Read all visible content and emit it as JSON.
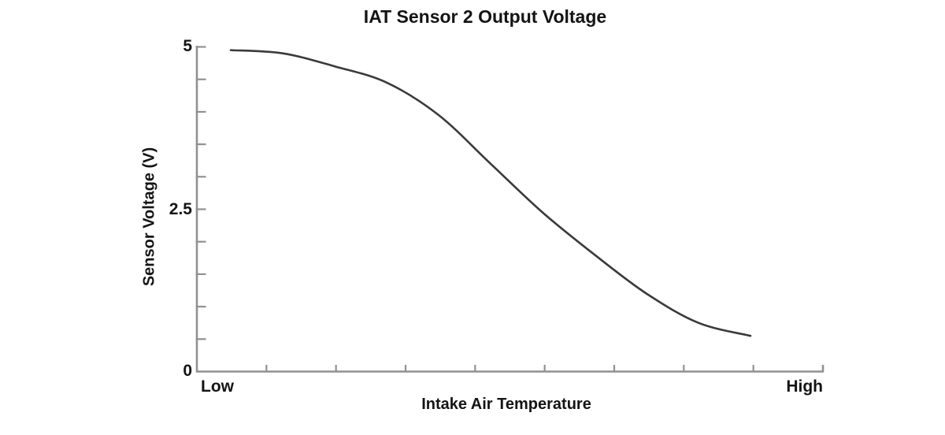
{
  "chart": {
    "title": "IAT Sensor 2 Output Voltage",
    "y_axis": {
      "label": "Sensor Voltage (V)",
      "tick_labels": [
        "0",
        "2.5",
        "5"
      ],
      "minor_tick_step_volts": 0.5
    },
    "x_axis": {
      "label": "Intake Air Temperature",
      "tick_labels": [
        "Low",
        "High"
      ],
      "unlabeled_tick_count": 9
    },
    "colors": {
      "background": "#ffffff",
      "axis": "#919191",
      "curve": "#3a3a3a",
      "text": "#141414"
    }
  },
  "chart_data": {
    "type": "line",
    "title": "IAT Sensor 2 Output Voltage",
    "xlabel": "Intake Air Temperature",
    "ylabel": "Sensor Voltage (V)",
    "x_axis_kind": "qualitative",
    "x_endpoints": [
      "Low",
      "High"
    ],
    "x_normalized": [
      0,
      0.1,
      0.2,
      0.3,
      0.4,
      0.5,
      0.6,
      0.7,
      0.8,
      0.9,
      1.0
    ],
    "series": [
      {
        "name": "IAT Sensor 2 output voltage",
        "values": [
          4.95,
          4.9,
          4.7,
          4.45,
          3.95,
          3.2,
          2.45,
          1.8,
          1.2,
          0.75,
          0.55
        ]
      }
    ],
    "ylim": [
      0,
      5
    ],
    "y_major_ticks": [
      0,
      2.5,
      5
    ],
    "y_minor_tick_step": 0.5,
    "grid": false,
    "legend": false,
    "annotations": []
  }
}
